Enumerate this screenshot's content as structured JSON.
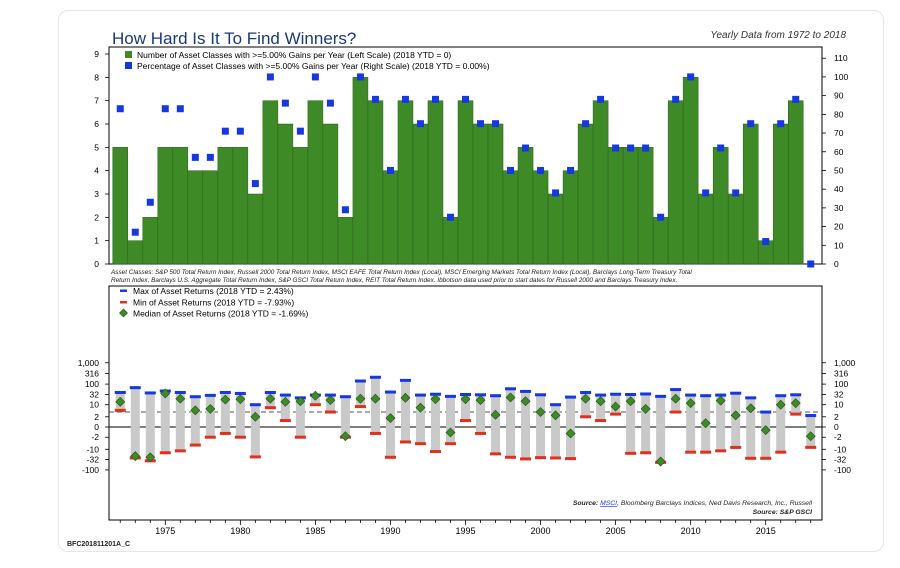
{
  "title": "How Hard Is It To Find Winners?",
  "subtitle": "Yearly Data from 1972 to 2018",
  "code": "BFC201811201A_C",
  "top_legend": [
    "Number of Asset Classes with >=5.00% Gains per Year (Left Scale) (2018 YTD = 0)",
    "Percentage of Asset Classes with >=5.00% Gains per Year (Right Scale) (2018 YTD = 0.00%)"
  ],
  "note_line1": "Asset Classes: S&P 500 Total Return Index, Russell 2000 Total Return Index, MSCI EAFE Total Return Index (Local), MSCI Emerging Markets Total Return Index (Local), Barclays Long-Term Treasury Total",
  "note_line2": "Return Index, Barclays U.S. Aggregate Total Return Index, S&P GSCI Total Return Index, REIT Total Return Index. Ibbotson data used prior to start dates for Russell 2000 and Barclays Treasury Index.",
  "bottom_legend": [
    "Max of Asset Returns (2018 YTD = 2.43%)",
    "Min of Asset Returns (2018 YTD = -7.93%)",
    "Median of Asset Returns (2018 YTD = -1.69%)"
  ],
  "source_label": "Source:",
  "source_link": "MSCI",
  "source_rest": ", Bloomberg Barclays Indices, Ned Davis Research, Inc., Russell",
  "source_line2": "Source: S&P GSCI",
  "colors": {
    "bar": "#3d8a26",
    "square": "#1638e0",
    "range": "#c9c9c9",
    "max": "#1638e0",
    "min": "#e0301e",
    "median": "#3d8a26",
    "title": "#1c3a78"
  },
  "chart_data": [
    {
      "type": "bar",
      "x": [
        1972,
        1973,
        1974,
        1975,
        1976,
        1977,
        1978,
        1979,
        1980,
        1981,
        1982,
        1983,
        1984,
        1985,
        1986,
        1987,
        1988,
        1989,
        1990,
        1991,
        1992,
        1993,
        1994,
        1995,
        1996,
        1997,
        1998,
        1999,
        2000,
        2001,
        2002,
        2003,
        2004,
        2005,
        2006,
        2007,
        2008,
        2009,
        2010,
        2011,
        2012,
        2013,
        2014,
        2015,
        2016,
        2017,
        2018
      ],
      "series": [
        {
          "name": "Number of Asset Classes with >=5.00% Gains per Year (Left Scale) (2018 YTD = 0)",
          "axis": "left",
          "values": [
            5,
            1,
            2,
            5,
            5,
            4,
            4,
            5,
            5,
            3,
            7,
            6,
            5,
            7,
            6,
            2,
            8,
            7,
            4,
            7,
            6,
            7,
            2,
            7,
            6,
            6,
            4,
            5,
            4,
            3,
            4,
            6,
            7,
            5,
            5,
            5,
            2,
            7,
            8,
            3,
            5,
            3,
            6,
            1,
            6,
            7,
            0
          ]
        },
        {
          "name": "Percentage of Asset Classes with >=5.00% Gains per Year (Right Scale) (2018 YTD = 0.00%)",
          "axis": "right",
          "values": [
            83,
            17,
            33,
            83,
            83,
            57,
            57,
            71,
            71,
            43,
            100,
            86,
            71,
            100,
            86,
            29,
            100,
            88,
            50,
            88,
            75,
            88,
            25,
            88,
            75,
            75,
            50,
            62,
            50,
            38,
            50,
            75,
            88,
            62,
            62,
            62,
            25,
            88,
            100,
            38,
            62,
            38,
            75,
            12,
            75,
            88,
            0
          ]
        }
      ],
      "left_ticks": [
        0,
        1,
        2,
        3,
        4,
        5,
        6,
        7,
        8,
        9
      ],
      "right_ticks": [
        0,
        10,
        20,
        30,
        40,
        50,
        60,
        70,
        80,
        90,
        100,
        110
      ],
      "ylim": [
        0,
        9.3
      ],
      "y2lim": [
        0,
        116
      ]
    },
    {
      "type": "range",
      "x": [
        1972,
        1973,
        1974,
        1975,
        1976,
        1977,
        1978,
        1979,
        1980,
        1981,
        1982,
        1983,
        1984,
        1985,
        1986,
        1987,
        1988,
        1989,
        1990,
        1991,
        1992,
        1993,
        1994,
        1995,
        1996,
        1997,
        1998,
        1999,
        2000,
        2001,
        2002,
        2003,
        2004,
        2005,
        2006,
        2007,
        2008,
        2009,
        2010,
        2011,
        2012,
        2013,
        2014,
        2015,
        2016,
        2017,
        2018
      ],
      "series": [
        {
          "name": "Max of Asset Returns (2018 YTD = 2.43%)",
          "values": [
            40,
            68,
            38,
            47,
            40,
            25,
            29,
            40,
            36,
            10,
            40,
            30,
            22,
            30,
            30,
            25,
            140,
            210,
            42,
            150,
            30,
            33,
            26,
            32,
            31,
            28,
            60,
            45,
            31,
            10,
            24,
            40,
            30,
            33,
            32,
            34,
            26,
            55,
            30,
            28,
            30,
            37,
            22,
            4,
            28,
            31,
            2.43
          ]
        },
        {
          "name": "Min of Asset Returns (2018 YTD = -7.93%)",
          "values": [
            5,
            -27,
            -37,
            -15,
            -12,
            -6,
            -2,
            -1,
            -2,
            -24,
            7,
            1,
            -2,
            10,
            4,
            -2,
            8,
            -1,
            -25,
            -4,
            -5,
            -13,
            -5,
            1,
            -1,
            -17,
            -25,
            -30,
            -26,
            -27,
            -29,
            2,
            1,
            3,
            -16,
            -15,
            -44,
            4,
            -14,
            -14,
            -12,
            -8,
            -28,
            -28,
            -14,
            3,
            -7.93
          ]
        },
        {
          "name": "Median of Asset Returns (2018 YTD = -1.69%)",
          "values": [
            14,
            -22,
            -25,
            36,
            20,
            5,
            6,
            18,
            19,
            2,
            20,
            14,
            15,
            28,
            17,
            -1.69,
            20,
            20,
            1.6,
            22,
            7,
            19,
            -0.8,
            19,
            17,
            2.7,
            23,
            15,
            4,
            2.5,
            -1,
            20,
            15,
            8,
            15,
            6,
            -40,
            20,
            12,
            0.5,
            16,
            2.5,
            6.5,
            -0.4,
            10,
            12,
            -1.69
          ]
        }
      ],
      "y_ticks": [
        "1,000",
        "316",
        "100",
        "32",
        "10",
        "2",
        "0",
        "-2",
        "-10",
        "-32",
        "-100"
      ],
      "reference_line": 4
    }
  ],
  "x_tick_labels": [
    "1975",
    "1980",
    "1985",
    "1990",
    "1995",
    "2000",
    "2005",
    "2010",
    "2015"
  ]
}
